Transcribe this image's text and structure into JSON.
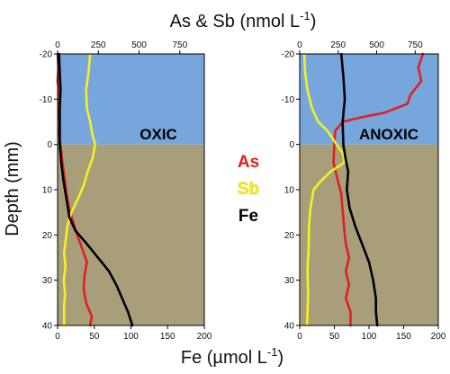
{
  "figure": {
    "top_axis_title": "As & Sb (nmol L",
    "top_axis_title_sup": "-1",
    "top_axis_title_end": ")",
    "bottom_axis_title": "Fe (µmol L",
    "bottom_axis_title_sup": "-1",
    "bottom_axis_title_end": ")",
    "y_axis_title": "Depth (mm)"
  },
  "legend": [
    {
      "label": "As",
      "color": "#e02020"
    },
    {
      "label": "Sb",
      "color": "#f5f020"
    },
    {
      "label": "Fe",
      "color": "#000000"
    }
  ],
  "colors": {
    "water": "#77a6dd",
    "sediment": "#a89f7a"
  },
  "chart_data": [
    {
      "type": "line",
      "panel_label": "OXIC",
      "y_range": [
        40,
        -20
      ],
      "y_ticks": [
        -20,
        -10,
        0,
        10,
        20,
        30,
        40
      ],
      "interface_depth": 0,
      "top_axis": {
        "label": "As & Sb (nmol L-1)",
        "range": [
          0,
          900
        ],
        "ticks": [
          0,
          250,
          500,
          750
        ]
      },
      "bottom_axis": {
        "label": "Fe (µmol L-1)",
        "range": [
          0,
          200
        ],
        "ticks": [
          0,
          50,
          100,
          150,
          200
        ]
      },
      "series": [
        {
          "name": "As",
          "axis": "top",
          "color": "#e02020",
          "points": [
            [
              0,
              -20
            ],
            [
              5,
              -17
            ],
            [
              0,
              -14
            ],
            [
              10,
              -11
            ],
            [
              5,
              -8
            ],
            [
              12,
              -5
            ],
            [
              10,
              -2
            ],
            [
              18,
              0
            ],
            [
              30,
              4
            ],
            [
              45,
              8
            ],
            [
              55,
              11
            ],
            [
              70,
              14
            ],
            [
              95,
              17
            ],
            [
              120,
              20
            ],
            [
              150,
              23
            ],
            [
              180,
              26
            ],
            [
              165,
              29
            ],
            [
              160,
              32
            ],
            [
              175,
              35
            ],
            [
              210,
              38
            ],
            [
              200,
              40
            ]
          ]
        },
        {
          "name": "Sb",
          "axis": "top",
          "color": "#f5f020",
          "points": [
            [
              200,
              -20
            ],
            [
              190,
              -16
            ],
            [
              175,
              -12
            ],
            [
              180,
              -8
            ],
            [
              200,
              -5
            ],
            [
              215,
              -2
            ],
            [
              230,
              0
            ],
            [
              215,
              3
            ],
            [
              185,
              6
            ],
            [
              160,
              9
            ],
            [
              125,
              12
            ],
            [
              85,
              15
            ],
            [
              60,
              18
            ],
            [
              50,
              21
            ],
            [
              40,
              24
            ],
            [
              48,
              27
            ],
            [
              38,
              30
            ],
            [
              45,
              33
            ],
            [
              40,
              36
            ],
            [
              40,
              40
            ]
          ]
        },
        {
          "name": "Fe",
          "axis": "bottom",
          "color": "#000000",
          "points": [
            [
              2,
              -20
            ],
            [
              3,
              -16
            ],
            [
              4,
              -12
            ],
            [
              3,
              -8
            ],
            [
              3,
              -4
            ],
            [
              3,
              0
            ],
            [
              5,
              4
            ],
            [
              8,
              8
            ],
            [
              12,
              12
            ],
            [
              16,
              16
            ],
            [
              24,
              19
            ],
            [
              40,
              22
            ],
            [
              55,
              25
            ],
            [
              70,
              28
            ],
            [
              80,
              31
            ],
            [
              88,
              34
            ],
            [
              96,
              37
            ],
            [
              102,
              40
            ]
          ]
        }
      ]
    },
    {
      "type": "line",
      "panel_label": "ANOXIC",
      "y_range": [
        40,
        -20
      ],
      "y_ticks": [
        -20,
        -10,
        0,
        10,
        20,
        30,
        40
      ],
      "interface_depth": 0,
      "top_axis": {
        "label": "As & Sb (nmol L-1)",
        "range": [
          0,
          900
        ],
        "ticks": [
          0,
          250,
          500,
          750
        ]
      },
      "bottom_axis": {
        "label": "Fe (µmol L-1)",
        "range": [
          0,
          200
        ],
        "ticks": [
          0,
          50,
          100,
          150,
          200
        ]
      },
      "series": [
        {
          "name": "As",
          "axis": "top",
          "color": "#e02020",
          "points": [
            [
              800,
              -20
            ],
            [
              770,
              -17
            ],
            [
              790,
              -14
            ],
            [
              720,
              -11
            ],
            [
              700,
              -9
            ],
            [
              550,
              -7
            ],
            [
              400,
              -6
            ],
            [
              280,
              -5
            ],
            [
              230,
              -3
            ],
            [
              225,
              0
            ],
            [
              220,
              4
            ],
            [
              240,
              7
            ],
            [
              270,
              11
            ],
            [
              280,
              15
            ],
            [
              290,
              19
            ],
            [
              300,
              22
            ],
            [
              320,
              25
            ],
            [
              300,
              28
            ],
            [
              320,
              31
            ],
            [
              300,
              34
            ],
            [
              330,
              37
            ],
            [
              330,
              40
            ]
          ]
        },
        {
          "name": "Sb",
          "axis": "top",
          "color": "#f5f020",
          "points": [
            [
              30,
              -20
            ],
            [
              35,
              -16
            ],
            [
              50,
              -12
            ],
            [
              80,
              -8
            ],
            [
              120,
              -5
            ],
            [
              180,
              -3
            ],
            [
              240,
              0
            ],
            [
              280,
              2
            ],
            [
              290,
              4
            ],
            [
              200,
              6
            ],
            [
              140,
              8
            ],
            [
              90,
              10
            ],
            [
              70,
              14
            ],
            [
              60,
              18
            ],
            [
              58,
              23
            ],
            [
              50,
              28
            ],
            [
              55,
              33
            ],
            [
              50,
              37
            ],
            [
              48,
              40
            ]
          ]
        },
        {
          "name": "Fe",
          "axis": "bottom",
          "color": "#000000",
          "points": [
            [
              60,
              -20
            ],
            [
              63,
              -15
            ],
            [
              65,
              -10
            ],
            [
              62,
              -5
            ],
            [
              63,
              0
            ],
            [
              66,
              3
            ],
            [
              70,
              6
            ],
            [
              68,
              10
            ],
            [
              72,
              14
            ],
            [
              80,
              18
            ],
            [
              90,
              22
            ],
            [
              100,
              26
            ],
            [
              106,
              30
            ],
            [
              110,
              34
            ],
            [
              110,
              37
            ],
            [
              112,
              40
            ]
          ]
        }
      ]
    }
  ]
}
